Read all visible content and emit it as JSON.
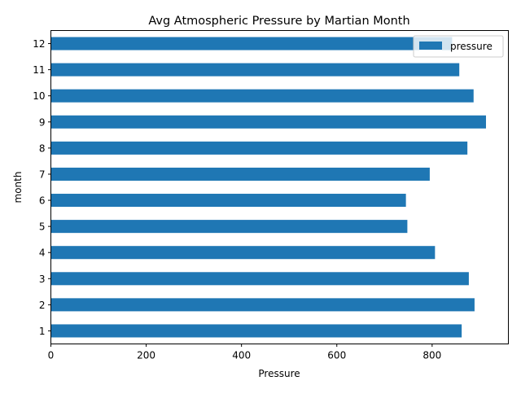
{
  "chart_data": {
    "type": "bar",
    "orientation": "horizontal",
    "title": "Avg Atmospheric Pressure by Martian Month",
    "xlabel": "Pressure",
    "ylabel": "month",
    "categories": [
      "1",
      "2",
      "3",
      "4",
      "5",
      "6",
      "7",
      "8",
      "9",
      "10",
      "11",
      "12"
    ],
    "series": [
      {
        "name": "pressure",
        "color": "#1f77b4",
        "values": [
          862,
          889,
          877,
          806,
          748,
          745,
          795,
          874,
          913,
          887,
          857,
          842
        ]
      }
    ],
    "xlim": [
      0,
      960
    ],
    "xticks": [
      "0",
      "200",
      "400",
      "600",
      "800"
    ],
    "legend_position": "top-right",
    "grid": false
  }
}
